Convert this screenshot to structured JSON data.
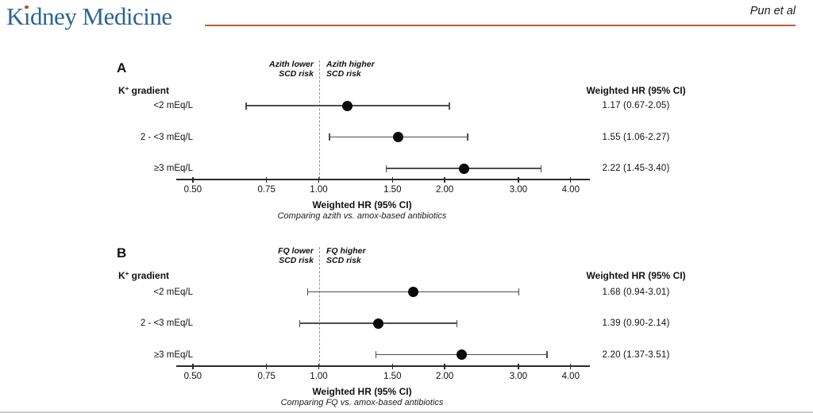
{
  "header": {
    "logo_prefix": "K",
    "logo_dotless_i": "ı",
    "logo_suffix": "dney Medicine",
    "logo_full": "Kidney Medicine",
    "author": "Pun et al",
    "colors": {
      "logo_blue": "#2a6496",
      "rule_orange": "#bd5b3d",
      "dot_red": "#c4492c"
    }
  },
  "chart_data": [
    {
      "type": "forest",
      "panel_label": "A",
      "group_label": {
        "prefix": "K",
        "sup": "+",
        "suffix": " gradient"
      },
      "direction_left": [
        "Azith lower",
        "SCD risk"
      ],
      "direction_right": [
        "Azith higher",
        "SCD risk"
      ],
      "column_header": "Weighted HR (95% CI)",
      "rows": [
        {
          "label": "<2 mEq/L",
          "hr": 1.17,
          "lo": 0.67,
          "hi": 2.05,
          "text": "1.17 (0.67-2.05)"
        },
        {
          "label": "2 - <3 mEq/L",
          "hr": 1.55,
          "lo": 1.06,
          "hi": 2.27,
          "text": "1.55 (1.06-2.27)"
        },
        {
          "label": "≥3 mEq/L",
          "hr": 2.22,
          "lo": 1.45,
          "hi": 3.4,
          "text": "2.22 (1.45-3.40)"
        }
      ],
      "axis": {
        "scale": "log",
        "reference": 1.0,
        "ticks": [
          0.5,
          0.75,
          1.0,
          1.5,
          2.0,
          3.0,
          4.0
        ],
        "tick_labels": [
          "0.50",
          "0.75",
          "1.00",
          "1.50",
          "2.00",
          "3.00",
          "4.00"
        ],
        "xlim": [
          0.46,
          4.45
        ],
        "label": "Weighted HR (95% CI)",
        "caption": "Comparing azith vs. amox-based antibiotics"
      }
    },
    {
      "type": "forest",
      "panel_label": "B",
      "group_label": {
        "prefix": "K",
        "sup": "+",
        "suffix": " gradient"
      },
      "direction_left": [
        "FQ lower",
        "SCD risk"
      ],
      "direction_right": [
        "FQ higher",
        "SCD risk"
      ],
      "column_header": "Weighted HR (95% CI)",
      "rows": [
        {
          "label": "<2 mEq/L",
          "hr": 1.68,
          "lo": 0.94,
          "hi": 3.01,
          "text": "1.68 (0.94-3.01)"
        },
        {
          "label": "2 - <3 mEq/L",
          "hr": 1.39,
          "lo": 0.9,
          "hi": 2.14,
          "text": "1.39 (0.90-2.14)"
        },
        {
          "label": "≥3 mEq/L",
          "hr": 2.2,
          "lo": 1.37,
          "hi": 3.51,
          "text": "2.20 (1.37-3.51)"
        }
      ],
      "axis": {
        "scale": "log",
        "reference": 1.0,
        "ticks": [
          0.5,
          0.75,
          1.0,
          1.5,
          2.0,
          3.0,
          4.0
        ],
        "tick_labels": [
          "0.50",
          "0.75",
          "1.00",
          "1.50",
          "2.00",
          "3.00",
          "4.00"
        ],
        "xlim": [
          0.46,
          4.45
        ],
        "label": "Weighted HR (95% CI)",
        "caption": "Comparing FQ vs. amox-based antibiotics"
      }
    }
  ]
}
